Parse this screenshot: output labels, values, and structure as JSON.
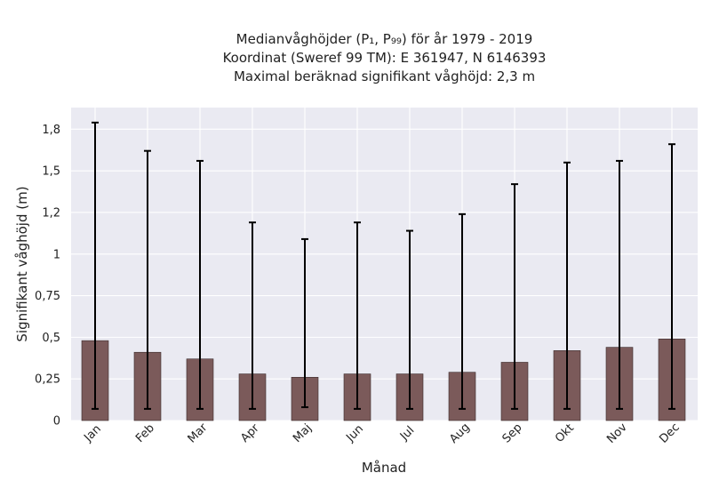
{
  "chart_data": {
    "type": "bar",
    "title_lines": [
      "Medianvåghöjder (P₁, P₉₉) för år 1979 - 2019",
      "Koordinat (Sweref 99 TM): E 361947, N 6146393",
      "Maximal beräknad signifikant våghöjd: 2,3 m"
    ],
    "xlabel": "Månad",
    "ylabel": "Signifikant våghöjd (m)",
    "categories": [
      "Jan",
      "Feb",
      "Mar",
      "Apr",
      "Maj",
      "Jun",
      "Jul",
      "Aug",
      "Sep",
      "Okt",
      "Nov",
      "Dec"
    ],
    "values": [
      0.48,
      0.41,
      0.37,
      0.28,
      0.26,
      0.28,
      0.28,
      0.29,
      0.35,
      0.42,
      0.44,
      0.49
    ],
    "p1": [
      0.07,
      0.07,
      0.07,
      0.07,
      0.08,
      0.07,
      0.07,
      0.07,
      0.07,
      0.07,
      0.07,
      0.07
    ],
    "p99": [
      1.79,
      1.62,
      1.56,
      1.19,
      1.09,
      1.19,
      1.14,
      1.24,
      1.42,
      1.55,
      1.56,
      1.66
    ],
    "yticks": [
      0,
      0.25,
      0.5,
      0.75,
      1,
      1.25,
      1.5,
      1.75
    ],
    "ytick_labels": [
      "0",
      "0,25",
      "0,5",
      "0,75",
      "1",
      "1,2",
      "1,5",
      "1,8"
    ],
    "ylim": [
      0,
      1.88
    ],
    "grid": true,
    "bar_color": "#7b5a5a",
    "errorbar_color": "#000000",
    "plot_background": "#eaeaf2"
  }
}
